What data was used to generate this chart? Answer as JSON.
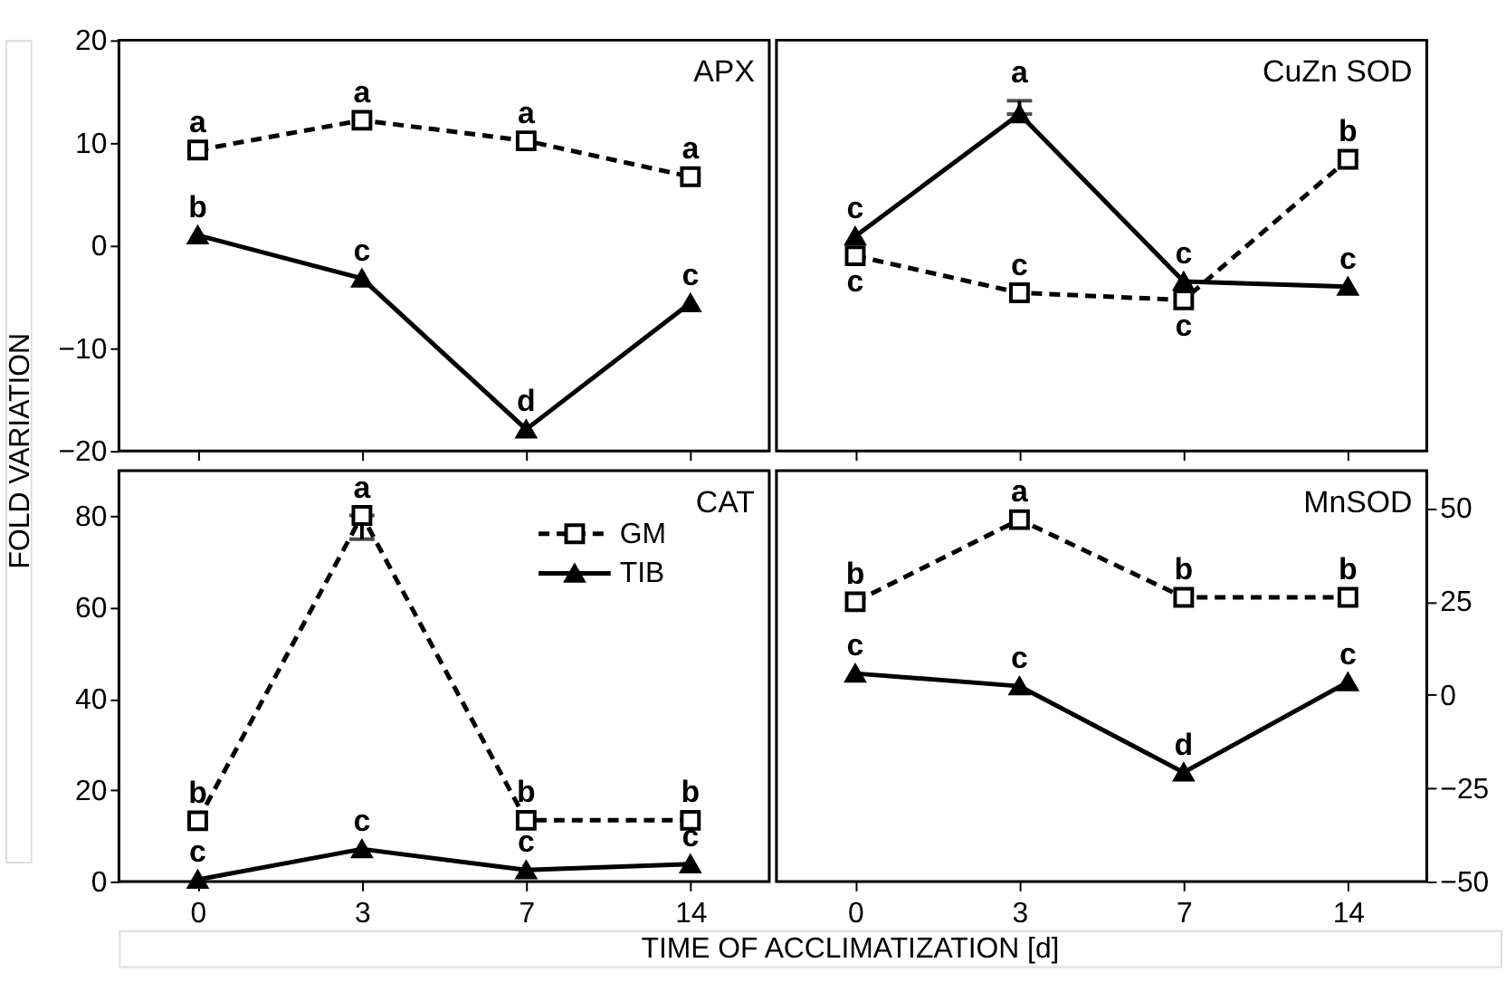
{
  "chart_data": [
    {
      "type": "line",
      "title": "APX",
      "ylabel": "FOLD VARIATION",
      "categories": [
        "0",
        "3",
        "7",
        "14"
      ],
      "ylim": [
        -20,
        20
      ],
      "yticks": [
        -20,
        -10,
        0,
        10,
        20
      ],
      "tick_labels": "y",
      "series": [
        {
          "color": "#000000",
          "marker": "square",
          "line_style": "dashed",
          "values": [
            9.3,
            12.2,
            10.2,
            6.7
          ]
        },
        {
          "color": "#000000",
          "marker": "triangle",
          "line_style": "solid",
          "values": [
            1,
            -3.2,
            -17.9,
            -5.6
          ]
        }
      ],
      "annotations": [
        {
          "text": "a",
          "x": "0",
          "y": 9.3
        },
        {
          "text": "a",
          "x": "3",
          "y": 12.2
        },
        {
          "text": "a",
          "x": "7",
          "y": 10.2
        },
        {
          "text": "a",
          "x": "14",
          "y": 6.7
        },
        {
          "text": "b",
          "x": "0",
          "y": 1
        },
        {
          "text": "c",
          "x": "3",
          "y": -3.2
        },
        {
          "text": "d",
          "x": "7",
          "y": -17.9
        },
        {
          "text": "c",
          "x": "14",
          "y": -5.6
        }
      ]
    },
    {
      "type": "line",
      "title": "CuZn SOD",
      "categories": [
        "0",
        "3",
        "7",
        "14"
      ],
      "ylim": [
        -20,
        20
      ],
      "yticks": [
        -20,
        -10,
        0,
        10,
        20
      ],
      "tick_labels": false,
      "series": [
        {
          "color": "#000000",
          "marker": "square",
          "line_style": "dashed",
          "values": [
            -1,
            -4.6,
            -5.3,
            8.4
          ]
        },
        {
          "color": "#000000",
          "marker": "triangle",
          "line_style": "solid",
          "values": [
            0.9,
            12.8,
            -3.5,
            -4
          ],
          "errors": [
            null,
            [
              12.8,
              14.1
            ],
            null,
            null
          ]
        }
      ],
      "annotations": [
        {
          "text": "c",
          "x": "0",
          "y": 0.9
        },
        {
          "text": "c",
          "x": "0",
          "y": -1
        },
        {
          "text": "a",
          "x": "3",
          "y": 12.8
        },
        {
          "text": "c",
          "x": "3",
          "y": -4.6
        },
        {
          "text": "c",
          "x": "7",
          "y": -3.5
        },
        {
          "text": "c",
          "x": "7",
          "y": -5.3
        },
        {
          "text": "b",
          "x": "14",
          "y": 8.4
        },
        {
          "text": "c",
          "x": "14",
          "y": -4
        }
      ]
    },
    {
      "type": "line",
      "title": "CAT",
      "xlabel": "TIME OF ACCLIMATIZATION [d]",
      "categories": [
        "0",
        "3",
        "7",
        "14"
      ],
      "ylim": [
        0,
        90
      ],
      "yticks": [
        0,
        20,
        40,
        60,
        80
      ],
      "legend": "top right",
      "series": [
        {
          "name": "GM",
          "color": "#000000",
          "marker": "square",
          "line_style": "dashed",
          "values": [
            13.3,
            80.2,
            13.4,
            13.4
          ],
          "errors": [
            null,
            [
              75,
              80.2
            ],
            null,
            null
          ]
        },
        {
          "name": "TIB",
          "color": "#000000",
          "marker": "triangle",
          "line_style": "solid",
          "values": [
            0.4,
            7.1,
            2.5,
            3.8
          ]
        }
      ],
      "annotations": [
        {
          "text": "b",
          "x": "0",
          "y": 13.3
        },
        {
          "text": "c",
          "x": "0",
          "y": 0.4
        },
        {
          "text": "a",
          "x": "3",
          "y": 80.2
        },
        {
          "text": "c",
          "x": "3",
          "y": 7.1
        },
        {
          "text": "b",
          "x": "7",
          "y": 13.4
        },
        {
          "text": "c",
          "x": "7",
          "y": 2.5
        },
        {
          "text": "b",
          "x": "14",
          "y": 13.4
        },
        {
          "text": "c",
          "x": "14",
          "y": 3.8
        }
      ]
    },
    {
      "type": "line",
      "title": "MnSOD",
      "categories": [
        "0",
        "3",
        "7",
        "14"
      ],
      "ylim": [
        -50,
        60
      ],
      "yticks": [
        -50,
        -25,
        0,
        25,
        50
      ],
      "series": [
        {
          "color": "#000000",
          "marker": "square",
          "line_style": "dashed",
          "values": [
            24.9,
            46.9,
            26.1,
            26.1
          ]
        },
        {
          "color": "#000000",
          "marker": "triangle",
          "line_style": "solid",
          "values": [
            5.7,
            2.3,
            -20.8,
            3.4
          ]
        }
      ],
      "annotations": [
        {
          "text": "b",
          "x": "0",
          "y": 24.9
        },
        {
          "text": "a",
          "x": "3",
          "y": 46.9
        },
        {
          "text": "b",
          "x": "7",
          "y": 26.1
        },
        {
          "text": "b",
          "x": "14",
          "y": 26.1
        },
        {
          "text": "c",
          "x": "0",
          "y": 5.7
        },
        {
          "text": "c",
          "x": "3",
          "y": 2.3
        },
        {
          "text": "d",
          "x": "7",
          "y": -20.8
        },
        {
          "text": "c",
          "x": "14",
          "y": 3.4
        }
      ]
    }
  ]
}
